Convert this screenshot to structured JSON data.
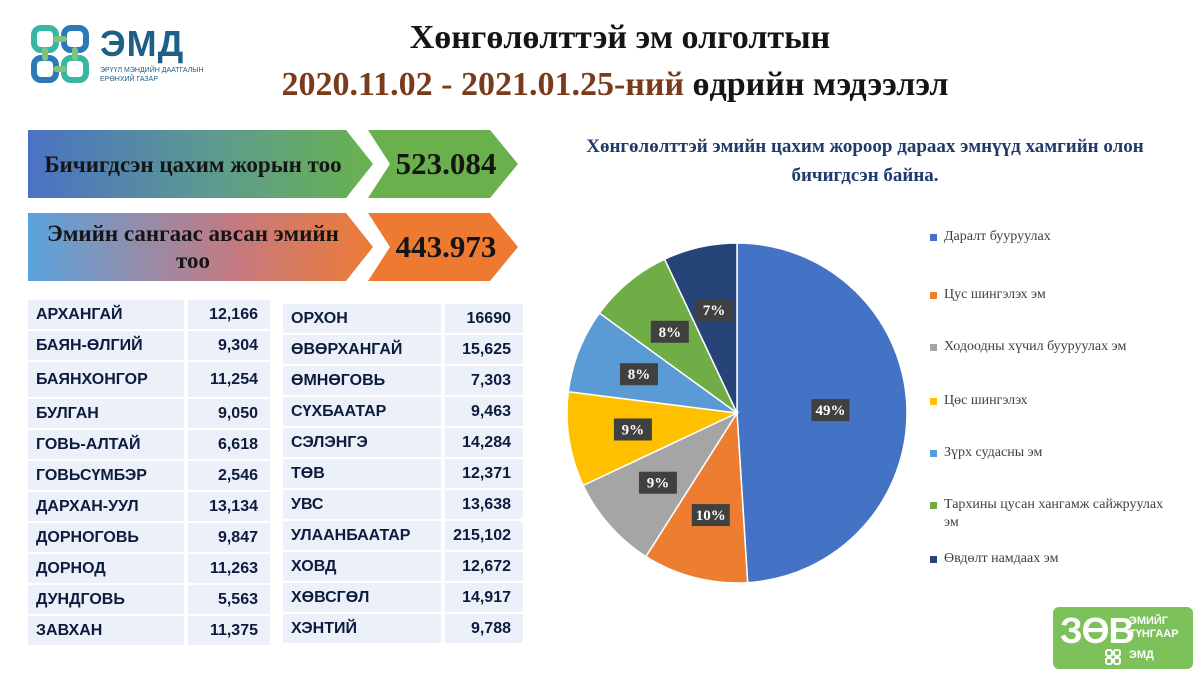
{
  "logo": {
    "name": "ЭМД",
    "subtitle": "ЭРҮҮЛ МЭНДИЙН ДААТГАЛЫН ЕРӨНХИЙ ГАЗАР"
  },
  "title": {
    "line1": "Хөнгөлөлттэй эм олголтын",
    "date_range": "2020.11.02 - 2021.01.25-ний",
    "line2_rest": "өдрийн мэдээлэл"
  },
  "stats": [
    {
      "label": "Бичигдсэн цахим жорын тоо",
      "value": "523.084"
    },
    {
      "label": "Эмийн сангаас авсан эмийн тоо",
      "value": "443.973"
    }
  ],
  "table_left": [
    {
      "name": "АРХАНГАЙ",
      "value": "12,166"
    },
    {
      "name": "БАЯН-ӨЛГИЙ",
      "value": "9,304"
    },
    {
      "name": "БАЯНХОНГОР",
      "value": "11,254"
    },
    {
      "name": "БУЛГАН",
      "value": "9,050"
    },
    {
      "name": "ГОВЬ-АЛТАЙ",
      "value": "6,618"
    },
    {
      "name": "ГОВЬСҮМБЭР",
      "value": "2,546"
    },
    {
      "name": "ДАРХАН-УУЛ",
      "value": "13,134"
    },
    {
      "name": "ДОРНОГОВЬ",
      "value": "9,847"
    },
    {
      "name": "ДОРНОД",
      "value": "11,263"
    },
    {
      "name": "ДУНДГОВЬ",
      "value": "5,563"
    },
    {
      "name": "ЗАВХАН",
      "value": "11,375"
    }
  ],
  "table_right": [
    {
      "name": "ОРХОН",
      "value": "16690"
    },
    {
      "name": "ӨВӨРХАНГАЙ",
      "value": "15,625"
    },
    {
      "name": "ӨМНӨГОВЬ",
      "value": "7,303"
    },
    {
      "name": "СҮХБААТАР",
      "value": "9,463"
    },
    {
      "name": "СЭЛЭНГЭ",
      "value": "14,284"
    },
    {
      "name": "ТӨВ",
      "value": "12,371"
    },
    {
      "name": "УВС",
      "value": "13,638"
    },
    {
      "name": "УЛААНБААТАР",
      "value": "215,102"
    },
    {
      "name": "ХОВД",
      "value": "12,672"
    },
    {
      "name": "ХӨВСГӨЛ",
      "value": "14,917"
    },
    {
      "name": "ХЭНТИЙ",
      "value": "9,788"
    }
  ],
  "chart_data": {
    "type": "pie",
    "title": "Хөнгөлөлттэй эмийн цахим жороор дараах эмнүүд хамгийн олон бичигдсэн байна.",
    "legend_position": "right",
    "slices": [
      {
        "label": "Даралт бууруулах",
        "value": 49,
        "display": "49%",
        "color": "#4472c4"
      },
      {
        "label": "Цус шингэлэх эм",
        "value": 10,
        "display": "10%",
        "color": "#ed7d31"
      },
      {
        "label": "Ходоодны хүчил бууруулах эм",
        "value": 9,
        "display": "9%",
        "color": "#a5a5a5"
      },
      {
        "label": "Цөс шингэлэх",
        "value": 9,
        "display": "9%",
        "color": "#ffc000"
      },
      {
        "label": "Зүрх судасны эм",
        "value": 8,
        "display": "8%",
        "color": "#5b9bd5"
      },
      {
        "label": "Тархины цусан хангамж сайжруулах эм",
        "value": 8,
        "display": "8%",
        "color": "#70ad47"
      },
      {
        "label": "Өвдөлт намдаах эм",
        "value": 7,
        "display": "7%",
        "color": "#264478"
      }
    ]
  },
  "badge": {
    "big": "ЗӨВ",
    "small1": "ЭМИЙГ",
    "small2": "ТҮНГААР",
    "emd": "ЭМД"
  }
}
